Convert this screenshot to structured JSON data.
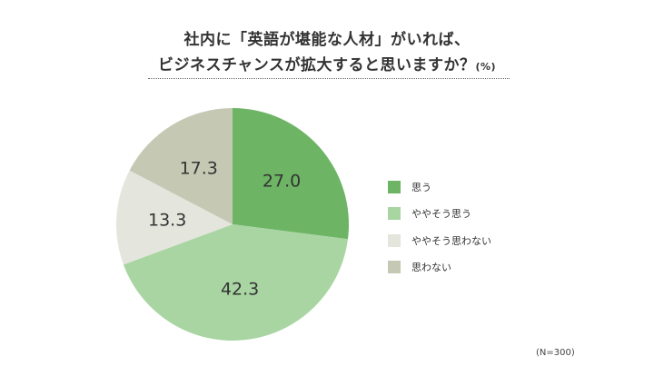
{
  "title": {
    "line1": "社内に「英語が堪能な人材」がいれば、",
    "line2": "ビジネスチャンスが拡大すると思いますか？",
    "unit": "(%)"
  },
  "note": "(N=300)",
  "chart_data": {
    "type": "pie",
    "title": "社内に「英語が堪能な人材」がいれば、ビジネスチャンスが拡大すると思いますか？",
    "unit": "%",
    "start": "12 o'clock",
    "direction": "clockwise",
    "slices": [
      {
        "label": "思う",
        "value": 27.0,
        "display": "27.0",
        "color": "#6db465"
      },
      {
        "label": "ややそう思う",
        "value": 42.3,
        "display": "42.3",
        "color": "#a8d5a2"
      },
      {
        "label": "ややそう思わない",
        "value": 13.3,
        "display": "13.3",
        "color": "#e4e5dd"
      },
      {
        "label": "思わない",
        "value": 17.3,
        "display": "17.3",
        "color": "#c5c8b3"
      }
    ],
    "legend_position": "right"
  }
}
